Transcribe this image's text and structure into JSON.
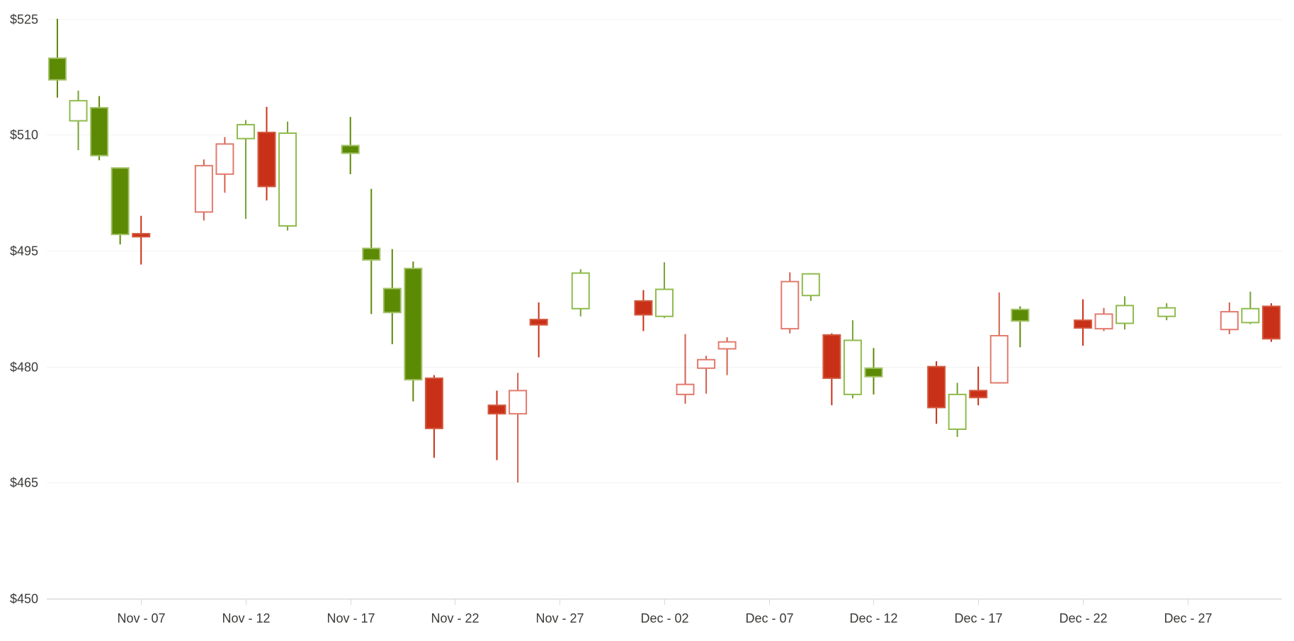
{
  "page": {
    "background": "#ffffff"
  },
  "chart_data": {
    "type": "candlestick",
    "title": "",
    "grid": "horizontal-only",
    "legend": "none",
    "y_axis": {
      "min": 450,
      "max": 525,
      "tick_step": 15,
      "tick_values": [
        525,
        510,
        495,
        480,
        465,
        450
      ],
      "tick_labels": [
        "$525",
        "$510",
        "$495",
        "$480",
        "$465",
        "$450"
      ]
    },
    "x_axis": {
      "ticks": [
        {
          "label": "Nov - 07",
          "day": 4
        },
        {
          "label": "Nov - 12",
          "day": 9
        },
        {
          "label": "Nov - 17",
          "day": 14
        },
        {
          "label": "Nov - 22",
          "day": 19
        },
        {
          "label": "Nov - 27",
          "day": 24
        },
        {
          "label": "Dec - 02",
          "day": 29
        },
        {
          "label": "Dec - 07",
          "day": 34
        },
        {
          "label": "Dec - 12",
          "day": 39
        },
        {
          "label": "Dec - 17",
          "day": 44
        },
        {
          "label": "Dec - 22",
          "day": 49
        },
        {
          "label": "Dec - 27",
          "day": 54
        }
      ]
    },
    "colors": {
      "background": "#ffffff",
      "gridline": "#f2f2f2",
      "axis_line": "#dbdbdb",
      "tick_mark": "#d9d9d9",
      "label_text": "#3a3a38",
      "green_solid_fill": "#5d8a05",
      "green_solid_border": "#a2c166",
      "green_solid_wick": "#5d8a05",
      "green_hollow_fill": "#ffffff",
      "green_hollow_border": "#8fbb4c",
      "green_hollow_wick": "#76a136",
      "red_solid_fill": "#c93018",
      "red_solid_border": "#d25b41",
      "red_solid_wick": "#c93018",
      "red_hollow_fill": "#ffffff",
      "red_hollow_border": "#e17b6d",
      "red_hollow_wick": "#d3604f"
    },
    "candles": [
      {
        "date": "Nov 03",
        "day": 0,
        "open": 519.9,
        "high": 525.0,
        "low": 514.8,
        "close": 517.1,
        "color": "green",
        "fill": "solid"
      },
      {
        "date": "Nov 04",
        "day": 1,
        "open": 511.8,
        "high": 515.7,
        "low": 508.0,
        "close": 514.4,
        "color": "green",
        "fill": "hollow"
      },
      {
        "date": "Nov 05",
        "day": 2,
        "open": 513.5,
        "high": 515.0,
        "low": 506.7,
        "close": 507.3,
        "color": "green",
        "fill": "solid"
      },
      {
        "date": "Nov 06",
        "day": 3,
        "open": 505.7,
        "high": 505.7,
        "low": 495.8,
        "close": 497.1,
        "color": "green",
        "fill": "solid"
      },
      {
        "date": "Nov 07",
        "day": 4,
        "open": 497.2,
        "high": 499.5,
        "low": 493.2,
        "close": 496.8,
        "color": "red",
        "fill": "solid"
      },
      {
        "date": "Nov 10",
        "day": 7,
        "open": 500.0,
        "high": 506.8,
        "low": 498.9,
        "close": 506.0,
        "color": "red",
        "fill": "hollow"
      },
      {
        "date": "Nov 11",
        "day": 8,
        "open": 504.9,
        "high": 509.7,
        "low": 502.5,
        "close": 508.8,
        "color": "red",
        "fill": "hollow"
      },
      {
        "date": "Nov 12",
        "day": 9,
        "open": 509.5,
        "high": 511.9,
        "low": 499.1,
        "close": 511.3,
        "color": "green",
        "fill": "hollow"
      },
      {
        "date": "Nov 13",
        "day": 10,
        "open": 510.3,
        "high": 513.6,
        "low": 501.5,
        "close": 503.3,
        "color": "red",
        "fill": "solid"
      },
      {
        "date": "Nov 14",
        "day": 11,
        "open": 498.2,
        "high": 511.7,
        "low": 497.6,
        "close": 510.2,
        "color": "green",
        "fill": "hollow"
      },
      {
        "date": "Nov 17",
        "day": 14,
        "open": 508.6,
        "high": 512.3,
        "low": 504.9,
        "close": 507.6,
        "color": "green",
        "fill": "solid"
      },
      {
        "date": "Nov 18",
        "day": 15,
        "open": 495.3,
        "high": 503.0,
        "low": 486.8,
        "close": 493.8,
        "color": "green",
        "fill": "solid"
      },
      {
        "date": "Nov 19",
        "day": 16,
        "open": 490.1,
        "high": 495.2,
        "low": 482.9,
        "close": 487.0,
        "color": "green",
        "fill": "solid"
      },
      {
        "date": "Nov 20",
        "day": 17,
        "open": 492.7,
        "high": 493.6,
        "low": 475.5,
        "close": 478.3,
        "color": "green",
        "fill": "solid"
      },
      {
        "date": "Nov 21",
        "day": 18,
        "open": 478.5,
        "high": 478.9,
        "low": 468.2,
        "close": 472.0,
        "color": "red",
        "fill": "solid"
      },
      {
        "date": "Nov 24",
        "day": 21,
        "open": 475.0,
        "high": 476.9,
        "low": 467.9,
        "close": 473.9,
        "color": "red",
        "fill": "solid"
      },
      {
        "date": "Nov 25",
        "day": 22,
        "open": 473.9,
        "high": 479.2,
        "low": 465.0,
        "close": 476.9,
        "color": "red",
        "fill": "hollow"
      },
      {
        "date": "Nov 26",
        "day": 23,
        "open": 486.1,
        "high": 488.3,
        "low": 481.2,
        "close": 485.4,
        "color": "red",
        "fill": "solid"
      },
      {
        "date": "Nov 28",
        "day": 25,
        "open": 487.5,
        "high": 492.6,
        "low": 486.5,
        "close": 492.1,
        "color": "green",
        "fill": "hollow"
      },
      {
        "date": "Dec 01",
        "day": 28,
        "open": 488.5,
        "high": 489.9,
        "low": 484.6,
        "close": 486.7,
        "color": "red",
        "fill": "solid"
      },
      {
        "date": "Dec 02",
        "day": 29,
        "open": 486.5,
        "high": 493.5,
        "low": 486.3,
        "close": 490.0,
        "color": "green",
        "fill": "hollow"
      },
      {
        "date": "Dec 03",
        "day": 30,
        "open": 476.4,
        "high": 484.2,
        "low": 475.2,
        "close": 477.7,
        "color": "red",
        "fill": "hollow"
      },
      {
        "date": "Dec 04",
        "day": 31,
        "open": 479.8,
        "high": 481.4,
        "low": 476.5,
        "close": 480.9,
        "color": "red",
        "fill": "hollow"
      },
      {
        "date": "Dec 05",
        "day": 32,
        "open": 482.3,
        "high": 483.8,
        "low": 478.9,
        "close": 483.2,
        "color": "red",
        "fill": "hollow"
      },
      {
        "date": "Dec 08",
        "day": 35,
        "open": 484.9,
        "high": 492.2,
        "low": 484.3,
        "close": 491.0,
        "color": "red",
        "fill": "hollow"
      },
      {
        "date": "Dec 09",
        "day": 36,
        "open": 489.2,
        "high": 492.1,
        "low": 488.5,
        "close": 492.0,
        "color": "green",
        "fill": "hollow"
      },
      {
        "date": "Dec 10",
        "day": 37,
        "open": 484.1,
        "high": 484.3,
        "low": 475.0,
        "close": 478.5,
        "color": "red",
        "fill": "solid"
      },
      {
        "date": "Dec 11",
        "day": 38,
        "open": 476.4,
        "high": 486.0,
        "low": 475.9,
        "close": 483.4,
        "color": "green",
        "fill": "hollow"
      },
      {
        "date": "Dec 12",
        "day": 39,
        "open": 479.8,
        "high": 482.4,
        "low": 476.4,
        "close": 478.7,
        "color": "green",
        "fill": "solid"
      },
      {
        "date": "Dec 15",
        "day": 42,
        "open": 480.0,
        "high": 480.7,
        "low": 472.6,
        "close": 474.7,
        "color": "red",
        "fill": "solid"
      },
      {
        "date": "Dec 16",
        "day": 43,
        "open": 471.9,
        "high": 477.9,
        "low": 470.9,
        "close": 476.4,
        "color": "green",
        "fill": "hollow"
      },
      {
        "date": "Dec 17",
        "day": 44,
        "open": 476.9,
        "high": 480.0,
        "low": 475.0,
        "close": 476.0,
        "color": "red",
        "fill": "solid"
      },
      {
        "date": "Dec 18",
        "day": 45,
        "open": 477.9,
        "high": 489.6,
        "low": 477.8,
        "close": 484.0,
        "color": "red",
        "fill": "hollow"
      },
      {
        "date": "Dec 19",
        "day": 46,
        "open": 487.4,
        "high": 487.8,
        "low": 482.5,
        "close": 485.9,
        "color": "green",
        "fill": "solid"
      },
      {
        "date": "Dec 22",
        "day": 49,
        "open": 486.0,
        "high": 488.7,
        "low": 482.7,
        "close": 485.0,
        "color": "red",
        "fill": "solid"
      },
      {
        "date": "Dec 23",
        "day": 50,
        "open": 484.9,
        "high": 487.6,
        "low": 484.6,
        "close": 486.8,
        "color": "red",
        "fill": "hollow"
      },
      {
        "date": "Dec 24",
        "day": 51,
        "open": 485.6,
        "high": 489.1,
        "low": 484.8,
        "close": 487.9,
        "color": "green",
        "fill": "hollow"
      },
      {
        "date": "Dec 26",
        "day": 53,
        "open": 486.5,
        "high": 488.2,
        "low": 486.0,
        "close": 487.6,
        "color": "green",
        "fill": "hollow"
      },
      {
        "date": "Dec 29",
        "day": 56,
        "open": 484.8,
        "high": 488.3,
        "low": 484.2,
        "close": 487.1,
        "color": "red",
        "fill": "hollow"
      },
      {
        "date": "Dec 30",
        "day": 57,
        "open": 485.7,
        "high": 489.7,
        "low": 485.5,
        "close": 487.5,
        "color": "green",
        "fill": "hollow"
      },
      {
        "date": "Dec 31",
        "day": 58,
        "open": 487.8,
        "high": 488.2,
        "low": 483.2,
        "close": 483.6,
        "color": "red",
        "fill": "solid"
      }
    ]
  }
}
